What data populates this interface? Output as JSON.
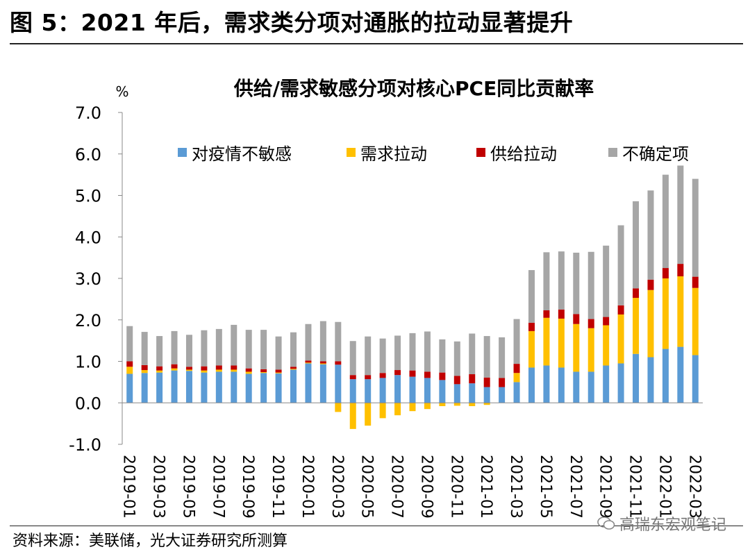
{
  "figure_title": "图 5：2021 年后，需求类分项对通胀的拉动显著提升",
  "source": "资料来源：美联储，光大证券研究所测算",
  "watermark": "高瑞东宏观笔记",
  "chart_data": {
    "type": "bar",
    "stacked": true,
    "title": "供给/需求敏感分项对核心PCE同比贡献率",
    "ylabel": "%",
    "ylim": [
      -1.0,
      7.0
    ],
    "yticks": [
      "-1.0",
      "0.0",
      "1.0",
      "2.0",
      "3.0",
      "4.0",
      "5.0",
      "6.0",
      "7.0"
    ],
    "legend_position": "top",
    "categories": [
      "2019-01",
      "2019-02",
      "2019-03",
      "2019-04",
      "2019-05",
      "2019-06",
      "2019-07",
      "2019-08",
      "2019-09",
      "2019-10",
      "2019-11",
      "2019-12",
      "2020-01",
      "2020-02",
      "2020-03",
      "2020-04",
      "2020-05",
      "2020-06",
      "2020-07",
      "2020-08",
      "2020-09",
      "2020-10",
      "2020-11",
      "2020-12",
      "2021-01",
      "2021-02",
      "2021-03",
      "2021-04",
      "2021-05",
      "2021-06",
      "2021-07",
      "2021-08",
      "2021-09",
      "2021-10",
      "2021-11",
      "2021-12",
      "2022-01",
      "2022-02",
      "2022-03"
    ],
    "tick_labels": [
      "2019-01",
      "2019-03",
      "2019-05",
      "2019-07",
      "2019-09",
      "2019-11",
      "2020-01",
      "2020-03",
      "2020-05",
      "2020-07",
      "2020-09",
      "2020-11",
      "2021-01",
      "2021-03",
      "2021-05",
      "2021-07",
      "2021-09",
      "2021-11",
      "2022-01",
      "2022-03"
    ],
    "series": [
      {
        "name": "对疫情不敏感",
        "color": "#5b9bd5",
        "values": [
          0.7,
          0.72,
          0.73,
          0.78,
          0.77,
          0.73,
          0.75,
          0.75,
          0.7,
          0.72,
          0.71,
          0.8,
          0.95,
          0.93,
          0.92,
          0.57,
          0.57,
          0.6,
          0.67,
          0.63,
          0.6,
          0.55,
          0.45,
          0.47,
          0.38,
          0.38,
          0.5,
          0.85,
          0.9,
          0.85,
          0.75,
          0.75,
          0.9,
          0.95,
          1.18,
          1.1,
          1.3,
          1.35,
          1.15
        ]
      },
      {
        "name": "需求拉动",
        "color": "#ffc000",
        "values": [
          0.17,
          0.07,
          0.05,
          0.05,
          0.03,
          0.05,
          0.05,
          0.05,
          0.05,
          0.02,
          0.02,
          0.02,
          0.02,
          0.02,
          -0.22,
          -0.63,
          -0.55,
          -0.37,
          -0.3,
          -0.2,
          -0.15,
          -0.08,
          -0.07,
          -0.08,
          -0.05,
          0.0,
          0.22,
          0.88,
          1.15,
          1.18,
          1.15,
          1.05,
          0.97,
          1.18,
          1.35,
          1.62,
          1.7,
          1.7,
          1.62
        ]
      },
      {
        "name": "供给拉动",
        "color": "#c00000",
        "values": [
          0.13,
          0.12,
          0.1,
          0.1,
          0.07,
          0.1,
          0.1,
          0.1,
          0.08,
          0.07,
          0.07,
          0.05,
          0.05,
          0.05,
          0.08,
          0.1,
          0.1,
          0.12,
          0.12,
          0.15,
          0.15,
          0.18,
          0.2,
          0.22,
          0.23,
          0.22,
          0.22,
          0.2,
          0.18,
          0.22,
          0.24,
          0.22,
          0.2,
          0.22,
          0.23,
          0.25,
          0.25,
          0.3,
          0.27
        ]
      },
      {
        "name": "不确定项",
        "color": "#a6a6a6",
        "values": [
          0.85,
          0.8,
          0.73,
          0.8,
          0.77,
          0.87,
          0.88,
          0.98,
          0.93,
          0.95,
          0.8,
          0.83,
          0.88,
          0.97,
          0.95,
          0.82,
          0.93,
          0.83,
          0.83,
          0.9,
          0.97,
          0.8,
          0.83,
          0.98,
          1.0,
          0.98,
          1.08,
          1.27,
          1.4,
          1.4,
          1.48,
          1.62,
          1.72,
          1.93,
          2.1,
          2.15,
          2.25,
          2.37,
          2.36
        ]
      }
    ]
  }
}
